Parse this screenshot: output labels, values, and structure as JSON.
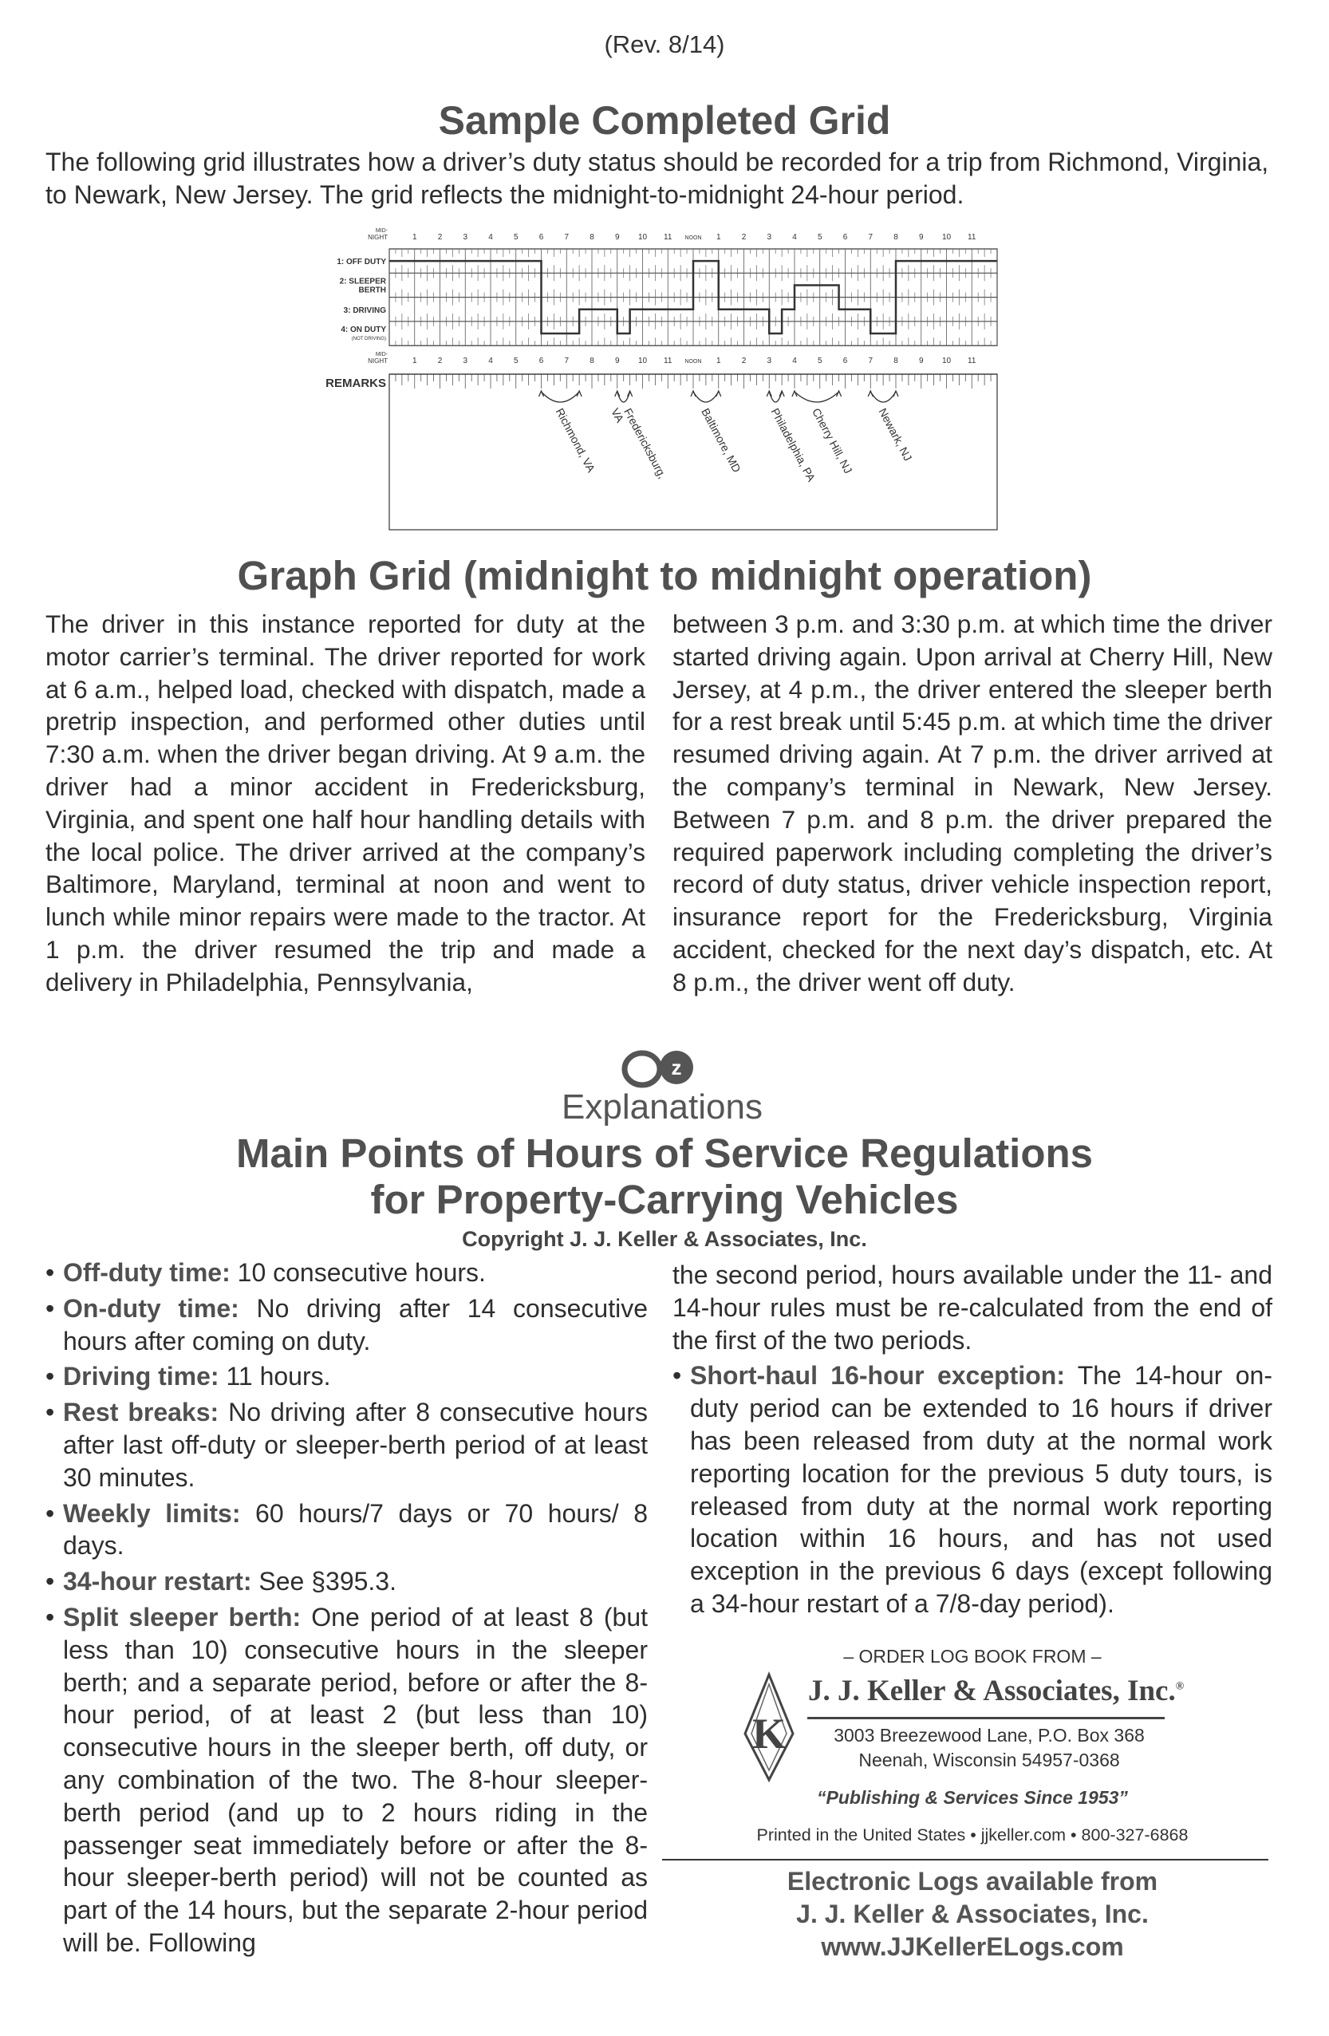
{
  "header": {
    "revision": "(Rev. 8/14)"
  },
  "sample": {
    "title": "Sample Completed Grid",
    "intro": "The following grid illustrates how a driver’s duty status should be recorded for a trip from Richmond, Virginia, to Newark, New Jersey. The grid reflects the midnight-to-midnight 24-hour period."
  },
  "grid": {
    "hour_labels": [
      "MID-\nNIGHT",
      "1",
      "2",
      "3",
      "4",
      "5",
      "6",
      "7",
      "8",
      "9",
      "10",
      "11",
      "NOON",
      "1",
      "2",
      "3",
      "4",
      "5",
      "6",
      "7",
      "8",
      "9",
      "10",
      "11"
    ],
    "rows": [
      {
        "label": "1: OFF DUTY"
      },
      {
        "label": "2: SLEEPER",
        "label2": "BERTH"
      },
      {
        "label": "3: DRIVING"
      },
      {
        "label": "4: ON DUTY",
        "label2": "(NOT DRIVING)"
      }
    ],
    "remarks_label": "REMARKS",
    "duty_segments": [
      {
        "status": 1,
        "from": 0,
        "to": 6
      },
      {
        "status": 4,
        "from": 6,
        "to": 7.5
      },
      {
        "status": 3,
        "from": 7.5,
        "to": 9
      },
      {
        "status": 4,
        "from": 9,
        "to": 9.5
      },
      {
        "status": 3,
        "from": 9.5,
        "to": 12
      },
      {
        "status": 1,
        "from": 12,
        "to": 13
      },
      {
        "status": 3,
        "from": 13,
        "to": 15
      },
      {
        "status": 4,
        "from": 15,
        "to": 15.5
      },
      {
        "status": 3,
        "from": 15.5,
        "to": 16
      },
      {
        "status": 2,
        "from": 16,
        "to": 17.75
      },
      {
        "status": 3,
        "from": 17.75,
        "to": 19
      },
      {
        "status": 4,
        "from": 19,
        "to": 20
      },
      {
        "status": 1,
        "from": 20,
        "to": 24
      }
    ],
    "remarks": [
      {
        "from": 6,
        "to": 7.5,
        "lines": [
          "Richmond, VA"
        ]
      },
      {
        "from": 9,
        "to": 9.5,
        "lines": [
          "Fredericksburg,",
          "VA"
        ]
      },
      {
        "from": 12,
        "to": 13,
        "lines": [
          "Baltimore, MD"
        ]
      },
      {
        "from": 15,
        "to": 15.5,
        "lines": [
          "Philadelphia, PA"
        ]
      },
      {
        "from": 16,
        "to": 17.75,
        "lines": [
          "Cherry Hill, NJ"
        ]
      },
      {
        "from": 19,
        "to": 20,
        "lines": [
          "Newark, NJ"
        ]
      }
    ]
  },
  "graph": {
    "title": "Graph Grid (midnight to midnight operation)",
    "col1": "The driver in this instance reported for duty at the motor carrier’s terminal. The driver reported for work at 6 a.m., helped load, checked with dispatch, made a pretrip inspection, and performed other duties until 7:30 a.m. when the driver began driving. At 9 a.m. the driver had a minor accident in Fredericksburg, Virginia, and spent one half hour handling details with the local police. The driver arrived at the company’s Baltimore, Maryland, terminal at noon and went to lunch while minor repairs were made to the tractor. At 1 p.m. the driver resumed the trip and made a delivery in Philadelphia, Pennsylvania,",
    "col2": "between 3 p.m. and 3:30 p.m. at which time the driver started driving again. Upon arrival at Cherry Hill, New Jersey, at 4 p.m., the driver entered the sleeper berth for a rest break until 5:45 p.m. at which time the driver resumed driving again. At 7 p.m. the driver arrived at the company’s terminal in Newark, New Jersey. Between 7 p.m. and 8 p.m. the driver prepared the required paperwork including completing the driver’s record of duty status, driver vehicle inspection report, insurance report for the Fredericksburg, Virginia accident, checked for the next day’s dispatch, etc. At 8 p.m., the driver went off duty."
  },
  "logo": {
    "text": "ez Explanations",
    "mark": "ez"
  },
  "main": {
    "title1": "Main Points of Hours of Service Regulations",
    "title2": "for Property-Carrying Vehicles",
    "copyright": "Copyright J. J. Keller & Associates, Inc.",
    "bullets": [
      {
        "term": "Off-duty time:",
        "text": " 10 consecutive hours."
      },
      {
        "term": "On-duty time:",
        "text": " No driving after 14 consecutive hours after coming on duty."
      },
      {
        "term": "Driving time:",
        "text": " 11 hours."
      },
      {
        "term": "Rest breaks:",
        "text": " No driving after 8 consecutive hours after last off-duty or sleeper-berth period of at least 30 minutes."
      },
      {
        "term": "Weekly limits:",
        "text": " 60 hours/7 days or 70 hours/ 8 days."
      },
      {
        "term": "34-hour restart:",
        "text": " See §395.3."
      },
      {
        "term": "Split sleeper berth:",
        "text": " One period of at least 8 (but less than 10) consecutive hours in the sleeper berth; and a separate period, before or after the 8-hour period, of at least 2 (but less than 10) consecutive hours in the sleeper berth, off duty, or any combination of the two. The 8-hour sleeper-berth period (and up to 2 hours riding in the passenger seat immediately before or after the 8-hour sleeper-berth period) will not be counted as part of the 14 hours, but the separate 2-hour period will be. Following"
      }
    ],
    "continuation": "the second period, hours available under the 11- and 14-hour rules must be re-calculated from the end of the first of the two periods.",
    "short_haul": {
      "term": "Short-haul 16-hour exception:",
      "text": " The 14-hour on-duty period can be extended to 16 hours if driver has been released from duty at the normal work reporting location for the previous 5 duty tours, is released from duty at the normal work reporting location within 16 hours, and has not used exception in the previous 6 days (except following a 34-hour restart of a 7/8-day period)."
    }
  },
  "order": {
    "heading": "– ORDER LOG BOOK FROM –",
    "company": "J. J. Keller & Associates, Inc.",
    "registered": "®",
    "address1": "3003 Breezewood Lane, P.O. Box 368",
    "address2": "Neenah, Wisconsin 54957-0368",
    "tagline": "“Publishing & Services Since 1953”",
    "printed": "Printed in the United States • jjkeller.com • 800-327-6868",
    "elogs1": "Electronic Logs available from",
    "elogs2": "J. J. Keller & Associates, Inc.",
    "elogs3": "www.JJKellerELogs.com"
  }
}
